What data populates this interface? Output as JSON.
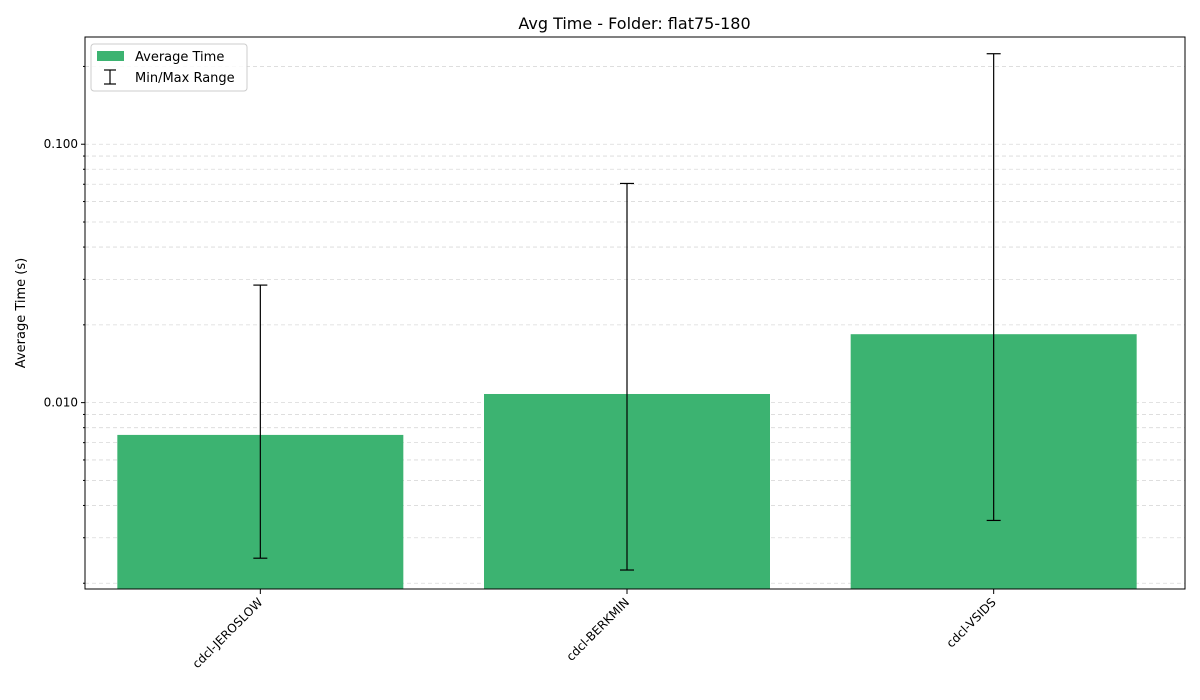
{
  "chart_data": {
    "type": "bar",
    "title": "Avg Time - Folder: flat75-180",
    "xlabel": "",
    "ylabel": "Average Time (s)",
    "yscale": "log",
    "ylim": [
      0.0019,
      0.26
    ],
    "yticks": [
      0.01,
      0.1
    ],
    "ytick_labels": [
      "0.010",
      "0.100"
    ],
    "categories": [
      "cdcl-JEROSLOW",
      "cdcl-BERKMIN",
      "cdcl-VSIDS"
    ],
    "series": [
      {
        "name": "Average Time",
        "values": [
          0.0075,
          0.0108,
          0.0184
        ],
        "min": [
          0.0025,
          0.00225,
          0.0035
        ],
        "max": [
          0.0285,
          0.0705,
          0.224
        ]
      }
    ],
    "legend": {
      "placement": "upper-left",
      "entries": [
        "Average Time",
        "Min/Max Range"
      ]
    },
    "grid": {
      "y": true,
      "style": "dashed"
    },
    "colors": {
      "bar": "#3cb371",
      "errorbar": "#000000",
      "grid": "#d9d9d9"
    }
  }
}
